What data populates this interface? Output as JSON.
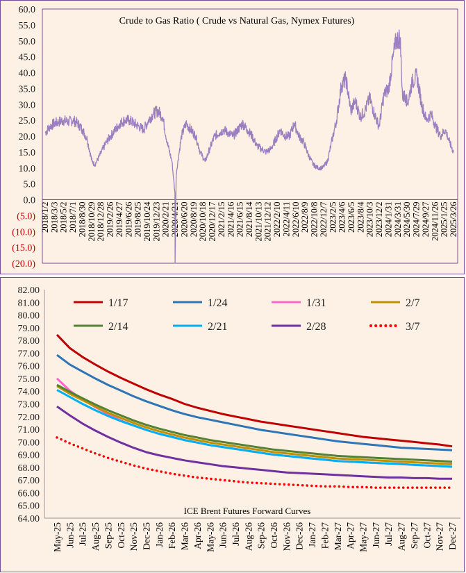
{
  "colors": {
    "background": "#fdf0e4",
    "border": "#7a4b9a",
    "ratio_line": "#9b7fc1",
    "negative_tick": "#c00000"
  },
  "chart_data": [
    {
      "type": "line",
      "title": "Crude to Gas Ratio ( Crude vs Natural Gas, Nymex Futures)",
      "ylim": [
        -20,
        60
      ],
      "y_ticks": [
        "60.0",
        "55.0",
        "50.0",
        "45.0",
        "40.0",
        "35.0",
        "30.0",
        "25.0",
        "20.0",
        "15.0",
        "10.0",
        "5.0",
        "0.0",
        "(5.0)",
        "(10.0)",
        "(15.0)",
        "(20.0)"
      ],
      "x_ticks": [
        "2018/1/2",
        "2018/3/3",
        "2018/5/2",
        "2018/7/1",
        "2018/8/30",
        "2018/10/29",
        "2018/12/28",
        "2019/2/26",
        "2019/4/27",
        "2019/6/26",
        "2019/8/25",
        "2019/10/24",
        "2019/12/23",
        "2020/2/21",
        "2020/4/21",
        "2020/6/20",
        "2020/8/19",
        "2020/10/18",
        "2020/12/17",
        "2021/2/15",
        "2021/4/16",
        "2021/6/15",
        "2021/8/14",
        "2021/10/13",
        "2021/12/12",
        "2022/2/10",
        "2022/4/11",
        "2022/6/10",
        "2022/8/9",
        "2022/10/8",
        "2022/12/7",
        "2023/2/5",
        "2023/4/6",
        "2023/6/5",
        "2023/8/4",
        "2023/10/3",
        "2023/12/2",
        "2024/1/31",
        "2024/3/31",
        "2024/5/30",
        "2024/7/29",
        "2024/9/27",
        "2024/11/26",
        "2025/1/25",
        "2025/3/26"
      ],
      "series": [
        {
          "x": [
            "2018-01-02",
            "2018-02-01",
            "2018-03-01",
            "2018-04-01",
            "2018-05-01",
            "2018-06-01",
            "2018-07-01",
            "2018-08-01",
            "2018-09-01",
            "2018-10-01",
            "2018-11-01",
            "2018-11-20",
            "2018-12-01",
            "2019-01-01",
            "2019-02-01",
            "2019-03-01",
            "2019-04-01",
            "2019-05-01",
            "2019-06-01",
            "2019-07-01",
            "2019-08-01",
            "2019-09-01",
            "2019-10-01",
            "2019-11-01",
            "2019-12-01",
            "2020-01-01",
            "2020-02-01",
            "2020-03-01",
            "2020-04-01",
            "2020-04-20",
            "2020-04-21",
            "2020-04-28",
            "2020-05-15",
            "2020-06-01",
            "2020-07-01",
            "2020-08-01",
            "2020-09-01",
            "2020-10-01",
            "2020-11-01",
            "2020-12-01",
            "2021-01-01",
            "2021-02-01",
            "2021-03-01",
            "2021-04-01",
            "2021-05-01",
            "2021-06-01",
            "2021-07-01",
            "2021-08-01",
            "2021-09-01",
            "2021-10-01",
            "2021-11-01",
            "2021-12-01",
            "2022-01-01",
            "2022-02-01",
            "2022-03-01",
            "2022-04-01",
            "2022-05-01",
            "2022-06-01",
            "2022-07-01",
            "2022-08-01",
            "2022-09-01",
            "2022-10-01",
            "2022-11-01",
            "2022-12-01",
            "2023-01-01",
            "2023-02-01",
            "2023-03-01",
            "2023-04-01",
            "2023-05-01",
            "2023-06-01",
            "2023-07-01",
            "2023-08-01",
            "2023-09-01",
            "2023-10-01",
            "2023-11-01",
            "2023-12-01",
            "2024-01-01",
            "2024-02-01",
            "2024-03-01",
            "2024-03-20",
            "2024-04-15",
            "2024-05-01",
            "2024-05-20",
            "2024-06-01",
            "2024-07-01",
            "2024-08-01",
            "2024-09-01",
            "2024-10-01",
            "2024-11-01",
            "2024-12-01",
            "2025-01-01",
            "2025-02-01",
            "2025-03-01",
            "2025-03-26"
          ],
          "values": [
            21,
            23,
            24,
            24.5,
            25,
            24.5,
            25,
            24,
            22,
            19,
            12,
            11,
            12,
            15,
            18,
            20,
            22,
            24,
            25,
            25,
            24,
            23,
            22,
            25,
            27,
            28,
            26,
            18,
            12,
            2,
            -20,
            8,
            14,
            20,
            24,
            22,
            20,
            15,
            12,
            16,
            20,
            21,
            22,
            21,
            20,
            22,
            24,
            22,
            20,
            17,
            16,
            15,
            16,
            19,
            22,
            20,
            20,
            24,
            20,
            18,
            14,
            11,
            10,
            10,
            12,
            19,
            25,
            36,
            38,
            28,
            31,
            26,
            28,
            32,
            27,
            23,
            33,
            35,
            45,
            50,
            51,
            32,
            33,
            30,
            37,
            39,
            30,
            25,
            27,
            23,
            20,
            22,
            18,
            15
          ]
        }
      ]
    },
    {
      "type": "line",
      "title": "ICE Brent Futures Forward Curves",
      "ylim": [
        64,
        82
      ],
      "y_ticks": [
        "82.00",
        "81.00",
        "80.00",
        "79.00",
        "78.00",
        "77.00",
        "76.00",
        "75.00",
        "74.00",
        "73.00",
        "72.00",
        "71.00",
        "70.00",
        "69.00",
        "68.00",
        "67.00",
        "66.00",
        "65.00",
        "64.00"
      ],
      "categories": [
        "May-25",
        "Jun-25",
        "Jul-25",
        "Aug-25",
        "Sep-25",
        "Oct-25",
        "Nov-25",
        "Dec-25",
        "Jan-26",
        "Feb-26",
        "Mar-26",
        "Apr-26",
        "May-26",
        "Jun-26",
        "Jul-26",
        "Aug-26",
        "Sep-26",
        "Oct-26",
        "Nov-26",
        "Dec-26",
        "Jan-27",
        "Feb-27",
        "Mar-27",
        "Apr-27",
        "May-27",
        "Jun-27",
        "Jul-27",
        "Aug-27",
        "Sep-27",
        "Oct-27",
        "Nov-27",
        "Dec-27"
      ],
      "legend_placement": "top",
      "series": [
        {
          "name": "1/17",
          "color": "#c00000",
          "style": "solid",
          "values": [
            78.45,
            77.4,
            76.7,
            76.1,
            75.55,
            75.05,
            74.6,
            74.15,
            73.75,
            73.4,
            73.0,
            72.7,
            72.45,
            72.2,
            72.0,
            71.8,
            71.6,
            71.45,
            71.3,
            71.15,
            71.0,
            70.85,
            70.7,
            70.55,
            70.4,
            70.3,
            70.2,
            70.1,
            70.0,
            69.9,
            69.8,
            69.65
          ]
        },
        {
          "name": "1/24",
          "color": "#2e75b6",
          "style": "solid",
          "values": [
            76.85,
            76.1,
            75.55,
            75.0,
            74.5,
            74.05,
            73.6,
            73.2,
            72.85,
            72.5,
            72.2,
            71.95,
            71.75,
            71.55,
            71.35,
            71.15,
            70.95,
            70.8,
            70.65,
            70.5,
            70.35,
            70.2,
            70.05,
            69.95,
            69.85,
            69.75,
            69.65,
            69.55,
            69.5,
            69.45,
            69.4,
            69.35
          ]
        },
        {
          "name": "1/31",
          "color": "#ff66cc",
          "style": "solid",
          "values": [
            75.0,
            74.05,
            73.35,
            72.75,
            72.2,
            71.7,
            71.3,
            70.95,
            70.65,
            70.4,
            70.15,
            69.95,
            69.75,
            69.6,
            69.45,
            69.3,
            69.15,
            69.0,
            68.9,
            68.8,
            68.7,
            68.6,
            68.5,
            68.45,
            68.4,
            68.35,
            68.3,
            68.25,
            68.2,
            68.15,
            68.1,
            68.05
          ]
        },
        {
          "name": "2/7",
          "color": "#bf9000",
          "style": "solid",
          "values": [
            74.4,
            73.8,
            73.3,
            72.8,
            72.3,
            71.9,
            71.5,
            71.15,
            70.85,
            70.6,
            70.35,
            70.15,
            69.95,
            69.8,
            69.65,
            69.5,
            69.35,
            69.2,
            69.1,
            69.0,
            68.9,
            68.8,
            68.7,
            68.65,
            68.6,
            68.55,
            68.5,
            68.45,
            68.4,
            68.35,
            68.3,
            68.25
          ]
        },
        {
          "name": "2/14",
          "color": "#548235",
          "style": "solid",
          "values": [
            74.5,
            73.95,
            73.45,
            72.95,
            72.5,
            72.1,
            71.7,
            71.35,
            71.05,
            70.8,
            70.55,
            70.35,
            70.15,
            70.0,
            69.85,
            69.7,
            69.55,
            69.4,
            69.3,
            69.2,
            69.1,
            69.0,
            68.9,
            68.85,
            68.8,
            68.75,
            68.7,
            68.65,
            68.6,
            68.55,
            68.5,
            68.45
          ]
        },
        {
          "name": "2/21",
          "color": "#00b0f0",
          "style": "solid",
          "values": [
            74.1,
            73.55,
            73.0,
            72.5,
            72.05,
            71.65,
            71.3,
            70.95,
            70.65,
            70.4,
            70.15,
            69.95,
            69.75,
            69.6,
            69.45,
            69.3,
            69.15,
            69.0,
            68.9,
            68.8,
            68.7,
            68.6,
            68.5,
            68.45,
            68.4,
            68.35,
            68.3,
            68.25,
            68.2,
            68.15,
            68.1,
            68.05
          ]
        },
        {
          "name": "2/28",
          "color": "#7030a0",
          "style": "solid",
          "values": [
            72.8,
            72.1,
            71.45,
            70.9,
            70.4,
            69.95,
            69.55,
            69.2,
            68.95,
            68.75,
            68.55,
            68.4,
            68.25,
            68.1,
            68.0,
            67.9,
            67.8,
            67.7,
            67.6,
            67.55,
            67.5,
            67.45,
            67.4,
            67.35,
            67.3,
            67.25,
            67.2,
            67.2,
            67.15,
            67.15,
            67.1,
            67.1
          ]
        },
        {
          "name": "3/7",
          "color": "#ff0000",
          "style": "dotted",
          "values": [
            70.35,
            69.9,
            69.5,
            69.1,
            68.75,
            68.45,
            68.15,
            67.9,
            67.7,
            67.5,
            67.35,
            67.2,
            67.1,
            67.0,
            66.9,
            66.8,
            66.75,
            66.7,
            66.65,
            66.6,
            66.55,
            66.5,
            66.5,
            66.45,
            66.45,
            66.4,
            66.4,
            66.4,
            66.4,
            66.4,
            66.4,
            66.4
          ]
        }
      ]
    }
  ]
}
